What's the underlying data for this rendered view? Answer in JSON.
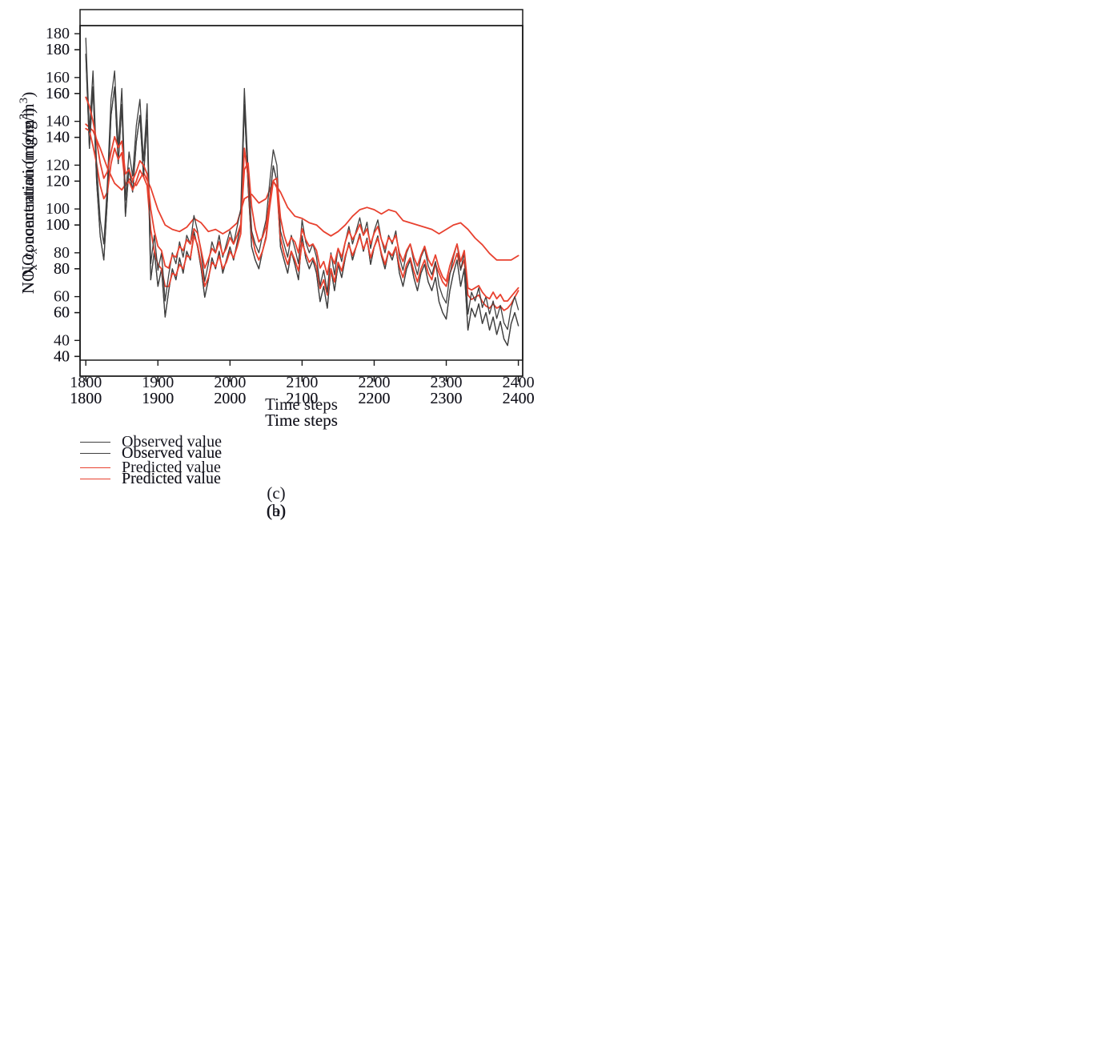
{
  "figure": {
    "background": "#ffffff",
    "axis_color": "#1a1a1a",
    "text_color": "#15151e",
    "x_axis_label": "Time steps",
    "y_axis_label": {
      "prefix": "NO",
      "subscript": "x",
      "middle": " concentration (mg/m",
      "superscript": "3",
      "suffix": ")"
    },
    "legend": [
      {
        "label": "Observed value",
        "color": "#3f3f3f"
      },
      {
        "label": "Predicted value",
        "color": "#e8412f"
      }
    ]
  },
  "chart_data": [
    {
      "id": "a",
      "caption": "(a)",
      "type": "line",
      "title": "",
      "xlabel": "Time steps",
      "ylabel": "NOx concentration (mg/m3)",
      "xlim": [
        1792,
        2406
      ],
      "ylim": [
        31,
        191
      ],
      "xticks": [
        1800,
        1900,
        2000,
        2100,
        2200,
        2300,
        2400
      ],
      "yticks": [
        40,
        60,
        80,
        100,
        120,
        140,
        160,
        180
      ],
      "grid": false,
      "legend_position": "below-left",
      "series": [
        {
          "name": "Observed value",
          "color": "#3f3f3f",
          "width": 1.3,
          "x_start": 1800,
          "x_step": 5,
          "values": [
            178,
            135,
            163,
            120,
            95,
            84,
            112,
            150,
            163,
            128,
            155,
            104,
            126,
            115,
            138,
            150,
            122,
            148,
            75,
            88,
            72,
            80,
            58,
            70,
            80,
            75,
            85,
            78,
            88,
            84,
            97,
            90,
            80,
            67,
            75,
            85,
            80,
            88,
            78,
            84,
            90,
            84,
            92,
            100,
            155,
            118,
            90,
            84,
            80,
            88,
            95,
            112,
            127,
            120,
            90,
            84,
            78,
            88,
            82,
            75,
            95,
            85,
            80,
            84,
            78,
            65,
            72,
            62,
            80,
            70,
            82,
            76,
            85,
            92,
            84,
            90,
            96,
            88,
            94,
            82,
            90,
            95,
            86,
            80,
            88,
            84,
            90,
            78,
            72,
            80,
            84,
            76,
            70,
            78,
            82,
            74,
            70,
            76,
            65,
            60,
            57,
            70,
            78,
            84,
            72,
            80,
            52,
            62,
            58,
            64,
            55,
            60,
            52,
            58,
            50,
            56,
            48,
            45,
            55,
            60,
            54
          ]
        },
        {
          "name": "Predicted value",
          "color": "#e8412f",
          "width": 1.8,
          "x_start": 1800,
          "x_step": 10,
          "values": [
            146,
            143,
            135,
            126,
            119,
            116,
            121,
            118,
            124,
            117,
            107,
            100,
            98,
            97,
            99,
            103,
            101,
            97,
            98,
            96,
            98,
            101,
            112,
            114,
            110,
            112,
            120,
            115,
            108,
            104,
            103,
            101,
            100,
            97,
            95,
            97,
            100,
            104,
            107,
            108,
            107,
            105,
            107,
            106,
            102,
            101,
            100,
            99,
            98,
            96,
            98,
            100,
            101,
            98,
            94,
            91,
            87,
            84,
            84,
            84,
            86
          ]
        }
      ]
    },
    {
      "id": "b",
      "caption": "(b)",
      "type": "line",
      "title": "",
      "xlabel": "Time steps",
      "ylabel": "NOx concentration (mg/m3)",
      "xlim": [
        1792,
        2406
      ],
      "ylim": [
        31,
        191
      ],
      "xticks": [
        1800,
        1900,
        2000,
        2100,
        2200,
        2300,
        2400
      ],
      "yticks": [
        40,
        60,
        80,
        100,
        120,
        140,
        160,
        180
      ],
      "grid": false,
      "legend_position": "below-left",
      "series": [
        {
          "name": "Observed value",
          "color": "#3f3f3f",
          "width": 1.3,
          "x_start": 1800,
          "x_step": 5,
          "values": [
            178,
            135,
            163,
            120,
            95,
            84,
            112,
            150,
            163,
            128,
            155,
            104,
            126,
            115,
            138,
            150,
            122,
            148,
            75,
            88,
            72,
            80,
            58,
            70,
            80,
            75,
            85,
            78,
            88,
            84,
            97,
            90,
            80,
            67,
            75,
            85,
            80,
            88,
            78,
            84,
            90,
            84,
            92,
            100,
            155,
            118,
            90,
            84,
            80,
            88,
            95,
            112,
            127,
            120,
            90,
            84,
            78,
            88,
            82,
            75,
            95,
            85,
            80,
            84,
            78,
            65,
            72,
            62,
            80,
            70,
            82,
            76,
            85,
            92,
            84,
            90,
            96,
            88,
            94,
            82,
            90,
            95,
            86,
            80,
            88,
            84,
            90,
            78,
            72,
            80,
            84,
            76,
            70,
            78,
            82,
            74,
            70,
            76,
            65,
            60,
            57,
            70,
            78,
            84,
            72,
            80,
            52,
            62,
            58,
            64,
            55,
            60,
            52,
            58,
            50,
            56,
            48,
            45,
            55,
            60,
            54
          ]
        },
        {
          "name": "Predicted value",
          "color": "#e8412f",
          "width": 1.8,
          "x_start": 1800,
          "x_step": 5,
          "values": [
            144,
            143,
            136,
            128,
            118,
            112,
            115,
            128,
            135,
            130,
            133,
            118,
            120,
            116,
            120,
            125,
            122,
            118,
            98,
            88,
            82,
            80,
            72,
            72,
            78,
            77,
            82,
            80,
            86,
            85,
            95,
            91,
            82,
            72,
            76,
            83,
            81,
            86,
            80,
            83,
            88,
            85,
            90,
            96,
            135,
            122,
            96,
            88,
            84,
            88,
            94,
            108,
            120,
            117,
            94,
            87,
            82,
            88,
            84,
            79,
            92,
            87,
            83,
            85,
            81,
            71,
            75,
            68,
            80,
            74,
            83,
            79,
            86,
            91,
            86,
            90,
            95,
            89,
            93,
            85,
            90,
            94,
            87,
            82,
            88,
            86,
            90,
            81,
            76,
            82,
            85,
            79,
            74,
            80,
            84,
            78,
            75,
            82,
            78,
            74,
            72,
            78,
            82,
            87,
            80,
            84,
            68,
            66,
            67,
            68,
            65,
            63,
            62,
            64,
            62,
            63,
            61,
            62,
            64,
            67,
            70
          ]
        }
      ]
    },
    {
      "id": "c",
      "caption": "(c)",
      "type": "line",
      "title": "",
      "xlabel": "Time steps",
      "ylabel": "NOx concentration (mg/m3)",
      "xlim": [
        1792,
        2406
      ],
      "ylim": [
        31,
        191
      ],
      "xticks": [
        1800,
        1900,
        2000,
        2100,
        2200,
        2300,
        2400
      ],
      "yticks": [
        40,
        60,
        80,
        100,
        120,
        140,
        160,
        180
      ],
      "grid": false,
      "legend_position": "below-left",
      "series": [
        {
          "name": "Observed value",
          "color": "#3f3f3f",
          "width": 1.3,
          "x_start": 1800,
          "x_step": 5,
          "values": [
            178,
            135,
            163,
            120,
            95,
            84,
            112,
            150,
            163,
            128,
            155,
            104,
            126,
            115,
            138,
            150,
            122,
            148,
            75,
            88,
            72,
            80,
            58,
            70,
            80,
            75,
            85,
            78,
            88,
            84,
            97,
            90,
            80,
            67,
            75,
            85,
            80,
            88,
            78,
            84,
            90,
            84,
            92,
            100,
            155,
            118,
            90,
            84,
            80,
            88,
            95,
            112,
            127,
            120,
            90,
            84,
            78,
            88,
            82,
            75,
            95,
            85,
            80,
            84,
            78,
            65,
            72,
            62,
            80,
            70,
            82,
            76,
            85,
            92,
            84,
            90,
            96,
            88,
            94,
            82,
            90,
            95,
            86,
            80,
            88,
            84,
            90,
            78,
            72,
            80,
            84,
            76,
            70,
            78,
            82,
            74,
            70,
            76,
            65,
            60,
            57,
            70,
            78,
            84,
            72,
            80,
            52,
            62,
            58,
            64,
            55,
            60,
            52,
            58,
            50,
            56,
            48,
            45,
            55,
            60,
            54
          ]
        },
        {
          "name": "Predicted value",
          "color": "#e8412f",
          "width": 1.8,
          "x_start": 1800,
          "x_step": 5,
          "values": [
            151,
            147,
            140,
            131,
            121,
            114,
            117,
            126,
            133,
            128,
            131,
            116,
            118,
            113,
            117,
            122,
            120,
            116,
            100,
            90,
            83,
            81,
            74,
            73,
            79,
            78,
            83,
            81,
            86,
            84,
            91,
            89,
            81,
            73,
            77,
            82,
            80,
            85,
            79,
            82,
            87,
            84,
            88,
            93,
            118,
            121,
            101,
            91,
            85,
            87,
            92,
            104,
            113,
            114,
            96,
            88,
            83,
            87,
            85,
            80,
            91,
            86,
            83,
            84,
            81,
            73,
            76,
            70,
            79,
            75,
            82,
            78,
            85,
            90,
            86,
            89,
            93,
            88,
            91,
            84,
            89,
            92,
            86,
            82,
            87,
            85,
            88,
            80,
            76,
            81,
            84,
            78,
            74,
            79,
            83,
            77,
            74,
            79,
            73,
            69,
            67,
            74,
            79,
            84,
            76,
            81,
            64,
            63,
            64,
            65,
            62,
            60,
            59,
            62,
            59,
            61,
            58,
            58,
            60,
            62,
            64
          ]
        }
      ]
    }
  ]
}
